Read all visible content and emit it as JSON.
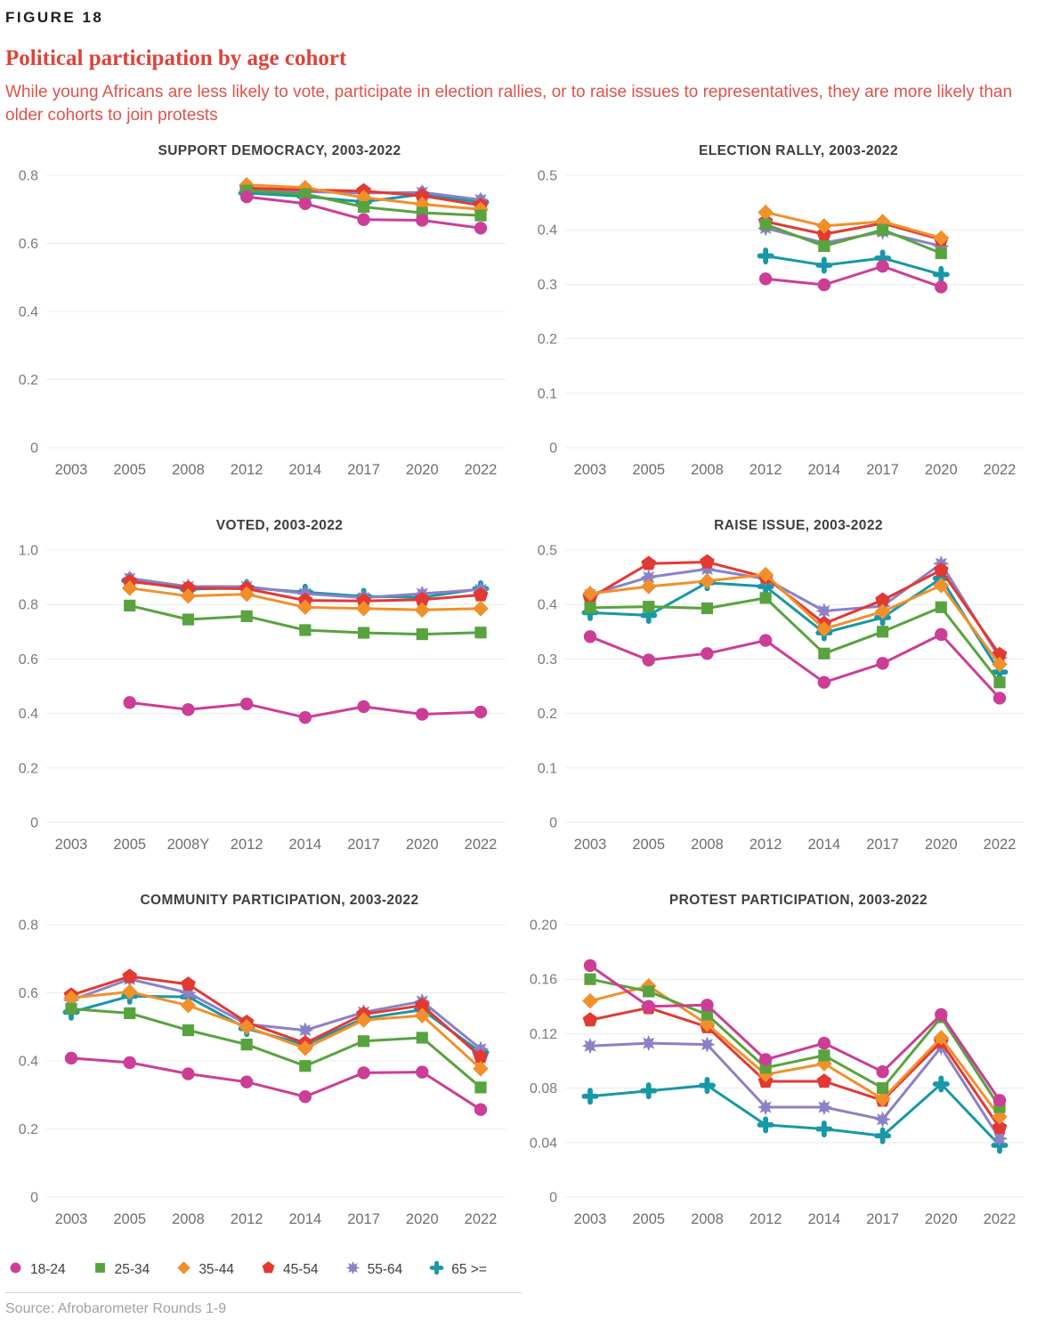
{
  "figure_label": "FIGURE 18",
  "title": "Political participation by age cohort",
  "subtitle": "While young Africans are less likely to vote, participate in election rallies, or to raise issues to representatives, they are more likely than older cohorts to join protests",
  "source": "Source: Afrobarometer Rounds 1-9",
  "palette": {
    "age_18_24": "#cc3e96",
    "age_25_34": "#58a33e",
    "age_35_44": "#f1902a",
    "age_45_54": "#e23933",
    "age_55_64": "#8b81c7",
    "age_65_plus": "#1798a6",
    "gridline": "#ececec",
    "heading_red": "#df4338"
  },
  "legend": [
    {
      "label": "18-24",
      "marker": "circle",
      "color": "#cc3e96"
    },
    {
      "label": "25-34",
      "marker": "square",
      "color": "#58a33e"
    },
    {
      "label": "35-44",
      "marker": "diamond",
      "color": "#f1902a"
    },
    {
      "label": "45-54",
      "marker": "pentagon",
      "color": "#e23933"
    },
    {
      "label": "55-64",
      "marker": "star8",
      "color": "#8b81c7"
    },
    {
      "label": "65 >=",
      "marker": "cross",
      "color": "#1798a6"
    }
  ],
  "chart_data": [
    {
      "type": "line",
      "title": "SUPPORT DEMOCRACY, 2003-2022",
      "categories": [
        "2003",
        "2005",
        "2008",
        "2012",
        "2014",
        "2017",
        "2020",
        "2022"
      ],
      "ylim": [
        0,
        0.8
      ],
      "yticks": [
        {
          "v": 0,
          "label": "0"
        },
        {
          "v": 0.2,
          "label": "0.2"
        },
        {
          "v": 0.4,
          "label": "0.4"
        },
        {
          "v": 0.6,
          "label": "0.6"
        },
        {
          "v": 0.8,
          "label": "0.8"
        }
      ],
      "series": [
        {
          "name": "18-24",
          "marker": "circle",
          "color": "#cc3e96",
          "values": [
            null,
            null,
            null,
            0.737,
            0.717,
            0.67,
            0.668,
            0.645
          ]
        },
        {
          "name": "25-34",
          "marker": "square",
          "color": "#58a33e",
          "values": [
            null,
            null,
            null,
            0.755,
            0.745,
            0.707,
            0.69,
            0.682
          ]
        },
        {
          "name": "35-44",
          "marker": "diamond",
          "color": "#f1902a",
          "values": [
            null,
            null,
            null,
            0.772,
            0.764,
            0.735,
            0.715,
            0.7
          ]
        },
        {
          "name": "45-54",
          "marker": "pentagon",
          "color": "#e23933",
          "values": [
            null,
            null,
            null,
            0.763,
            0.757,
            0.754,
            0.74,
            0.712
          ]
        },
        {
          "name": "55-64",
          "marker": "star8",
          "color": "#8b81c7",
          "values": [
            null,
            null,
            null,
            0.758,
            0.752,
            0.748,
            0.75,
            0.728
          ]
        },
        {
          "name": "65 >=",
          "marker": "cross",
          "color": "#1798a6",
          "values": [
            null,
            null,
            null,
            0.748,
            0.738,
            0.722,
            0.744,
            0.721
          ]
        }
      ]
    },
    {
      "type": "line",
      "title": "ELECTION RALLY, 2003-2022",
      "categories": [
        "2003",
        "2005",
        "2008",
        "2012",
        "2014",
        "2017",
        "2020",
        "2022"
      ],
      "ylim": [
        0,
        0.5
      ],
      "yticks": [
        {
          "v": 0,
          "label": "0"
        },
        {
          "v": 0.1,
          "label": "0.1"
        },
        {
          "v": 0.2,
          "label": "0.2"
        },
        {
          "v": 0.3,
          "label": "0.3"
        },
        {
          "v": 0.4,
          "label": "0.4"
        },
        {
          "v": 0.5,
          "label": "0.5"
        }
      ],
      "series": [
        {
          "name": "18-24",
          "marker": "circle",
          "color": "#cc3e96",
          "values": [
            null,
            null,
            null,
            0.31,
            0.299,
            0.333,
            0.295,
            null
          ]
        },
        {
          "name": "25-34",
          "marker": "square",
          "color": "#58a33e",
          "values": [
            null,
            null,
            null,
            0.41,
            0.37,
            0.4,
            0.357,
            null
          ]
        },
        {
          "name": "35-44",
          "marker": "diamond",
          "color": "#f1902a",
          "values": [
            null,
            null,
            null,
            0.432,
            0.407,
            0.415,
            0.385,
            null
          ]
        },
        {
          "name": "45-54",
          "marker": "pentagon",
          "color": "#e23933",
          "values": [
            null,
            null,
            null,
            0.415,
            0.392,
            0.412,
            0.382,
            null
          ]
        },
        {
          "name": "55-64",
          "marker": "star8",
          "color": "#8b81c7",
          "values": [
            null,
            null,
            null,
            0.403,
            0.376,
            0.396,
            0.37,
            null
          ]
        },
        {
          "name": "65 >=",
          "marker": "cross",
          "color": "#1798a6",
          "values": [
            null,
            null,
            null,
            0.352,
            0.335,
            0.348,
            0.318,
            null
          ]
        }
      ]
    },
    {
      "type": "line",
      "title": "VOTED, 2003-2022",
      "categories": [
        "2003",
        "2005",
        "2008Y",
        "2012",
        "2014",
        "2017",
        "2020",
        "2022"
      ],
      "ylim": [
        0,
        1.0
      ],
      "yticks": [
        {
          "v": 0,
          "label": "0"
        },
        {
          "v": 0.2,
          "label": "0.2"
        },
        {
          "v": 0.4,
          "label": "0.4"
        },
        {
          "v": 0.6,
          "label": "0.6"
        },
        {
          "v": 0.8,
          "label": "0.8"
        },
        {
          "v": 1.0,
          "label": "1.0"
        }
      ],
      "series": [
        {
          "name": "18-24",
          "marker": "circle",
          "color": "#cc3e96",
          "values": [
            null,
            0.44,
            0.414,
            0.435,
            0.385,
            0.425,
            0.397,
            0.405
          ]
        },
        {
          "name": "25-34",
          "marker": "square",
          "color": "#58a33e",
          "values": [
            null,
            0.796,
            0.745,
            0.757,
            0.706,
            0.696,
            0.691,
            0.697
          ]
        },
        {
          "name": "35-44",
          "marker": "diamond",
          "color": "#f1902a",
          "values": [
            null,
            0.86,
            0.831,
            0.838,
            0.79,
            0.785,
            0.78,
            0.785
          ]
        },
        {
          "name": "45-54",
          "marker": "pentagon",
          "color": "#e23933",
          "values": [
            null,
            0.884,
            0.86,
            0.858,
            0.815,
            0.813,
            0.818,
            0.835
          ]
        },
        {
          "name": "55-64",
          "marker": "star8",
          "color": "#8b81c7",
          "values": [
            null,
            0.896,
            0.866,
            0.866,
            0.84,
            0.825,
            0.84,
            0.855
          ]
        },
        {
          "name": "65 >=",
          "marker": "cross",
          "color": "#1798a6",
          "values": [
            null,
            0.888,
            0.856,
            0.862,
            0.845,
            0.83,
            0.826,
            0.858
          ]
        }
      ]
    },
    {
      "type": "line",
      "title": "RAISE ISSUE, 2003-2022",
      "categories": [
        "2003",
        "2005",
        "2008",
        "2012",
        "2014",
        "2017",
        "2020",
        "2022"
      ],
      "ylim": [
        0,
        0.5
      ],
      "yticks": [
        {
          "v": 0,
          "label": "0"
        },
        {
          "v": 0.1,
          "label": "0.1"
        },
        {
          "v": 0.2,
          "label": "0.2"
        },
        {
          "v": 0.3,
          "label": "0.3"
        },
        {
          "v": 0.4,
          "label": "0.4"
        },
        {
          "v": 0.5,
          "label": "0.5"
        }
      ],
      "series": [
        {
          "name": "18-24",
          "marker": "circle",
          "color": "#cc3e96",
          "values": [
            0.341,
            0.298,
            0.31,
            0.334,
            0.257,
            0.292,
            0.345,
            0.228
          ]
        },
        {
          "name": "25-34",
          "marker": "square",
          "color": "#58a33e",
          "values": [
            0.394,
            0.396,
            0.393,
            0.412,
            0.31,
            0.35,
            0.395,
            0.257
          ]
        },
        {
          "name": "35-44",
          "marker": "diamond",
          "color": "#f1902a",
          "values": [
            0.42,
            0.433,
            0.443,
            0.455,
            0.355,
            0.387,
            0.435,
            0.29
          ]
        },
        {
          "name": "45-54",
          "marker": "pentagon",
          "color": "#e23933",
          "values": [
            0.412,
            0.475,
            0.478,
            0.45,
            0.365,
            0.408,
            0.463,
            0.308
          ]
        },
        {
          "name": "55-64",
          "marker": "star8",
          "color": "#8b81c7",
          "values": [
            0.418,
            0.45,
            0.465,
            0.447,
            0.388,
            0.397,
            0.475,
            0.302
          ]
        },
        {
          "name": "65 >=",
          "marker": "cross",
          "color": "#1798a6",
          "values": [
            0.385,
            0.38,
            0.44,
            0.433,
            0.348,
            0.376,
            0.448,
            0.276
          ]
        }
      ]
    },
    {
      "type": "line",
      "title": "COMMUNITY PARTICIPATION, 2003-2022",
      "categories": [
        "2003",
        "2005",
        "2008",
        "2012",
        "2014",
        "2017",
        "2020",
        "2022"
      ],
      "ylim": [
        0,
        0.8
      ],
      "yticks": [
        {
          "v": 0,
          "label": "0"
        },
        {
          "v": 0.2,
          "label": "0.2"
        },
        {
          "v": 0.4,
          "label": "0.4"
        },
        {
          "v": 0.6,
          "label": "0.6"
        },
        {
          "v": 0.8,
          "label": "0.8"
        }
      ],
      "series": [
        {
          "name": "18-24",
          "marker": "circle",
          "color": "#cc3e96",
          "values": [
            0.408,
            0.395,
            0.362,
            0.338,
            0.295,
            0.365,
            0.367,
            0.257
          ]
        },
        {
          "name": "25-34",
          "marker": "square",
          "color": "#58a33e",
          "values": [
            0.553,
            0.54,
            0.49,
            0.448,
            0.385,
            0.458,
            0.468,
            0.322
          ]
        },
        {
          "name": "35-44",
          "marker": "diamond",
          "color": "#f1902a",
          "values": [
            0.585,
            0.603,
            0.563,
            0.5,
            0.437,
            0.52,
            0.533,
            0.377
          ]
        },
        {
          "name": "45-54",
          "marker": "pentagon",
          "color": "#e23933",
          "values": [
            0.593,
            0.648,
            0.625,
            0.513,
            0.452,
            0.537,
            0.563,
            0.412
          ]
        },
        {
          "name": "55-64",
          "marker": "star8",
          "color": "#8b81c7",
          "values": [
            0.578,
            0.64,
            0.6,
            0.508,
            0.49,
            0.543,
            0.575,
            0.435
          ]
        },
        {
          "name": "65 >=",
          "marker": "cross",
          "color": "#1798a6",
          "values": [
            0.543,
            0.59,
            0.588,
            0.495,
            0.447,
            0.525,
            0.55,
            0.425
          ]
        }
      ]
    },
    {
      "type": "line",
      "title": "PROTEST PARTICIPATION, 2003-2022",
      "categories": [
        "2003",
        "2005",
        "2008",
        "2012",
        "2014",
        "2017",
        "2020",
        "2022"
      ],
      "ylim": [
        0,
        0.2
      ],
      "yticks": [
        {
          "v": 0,
          "label": "0"
        },
        {
          "v": 0.04,
          "label": "0.04"
        },
        {
          "v": 0.08,
          "label": "0.08"
        },
        {
          "v": 0.12,
          "label": "0.12"
        },
        {
          "v": 0.16,
          "label": "0.16"
        },
        {
          "v": 0.2,
          "label": "0.20"
        }
      ],
      "series": [
        {
          "name": "18-24",
          "marker": "circle",
          "color": "#cc3e96",
          "values": [
            0.17,
            0.14,
            0.141,
            0.101,
            0.113,
            0.092,
            0.134,
            0.071
          ]
        },
        {
          "name": "25-34",
          "marker": "square",
          "color": "#58a33e",
          "values": [
            0.16,
            0.151,
            0.134,
            0.095,
            0.104,
            0.08,
            0.132,
            0.066
          ]
        },
        {
          "name": "35-44",
          "marker": "diamond",
          "color": "#f1902a",
          "values": [
            0.144,
            0.155,
            0.127,
            0.09,
            0.098,
            0.072,
            0.117,
            0.059
          ]
        },
        {
          "name": "45-54",
          "marker": "pentagon",
          "color": "#e23933",
          "values": [
            0.13,
            0.139,
            0.125,
            0.085,
            0.085,
            0.071,
            0.114,
            0.051
          ]
        },
        {
          "name": "55-64",
          "marker": "star8",
          "color": "#8b81c7",
          "values": [
            0.111,
            0.113,
            0.112,
            0.066,
            0.066,
            0.057,
            0.11,
            0.043
          ]
        },
        {
          "name": "65 >=",
          "marker": "cross",
          "color": "#1798a6",
          "values": [
            0.074,
            0.078,
            0.082,
            0.053,
            0.05,
            0.045,
            0.083,
            0.038
          ]
        }
      ]
    }
  ]
}
